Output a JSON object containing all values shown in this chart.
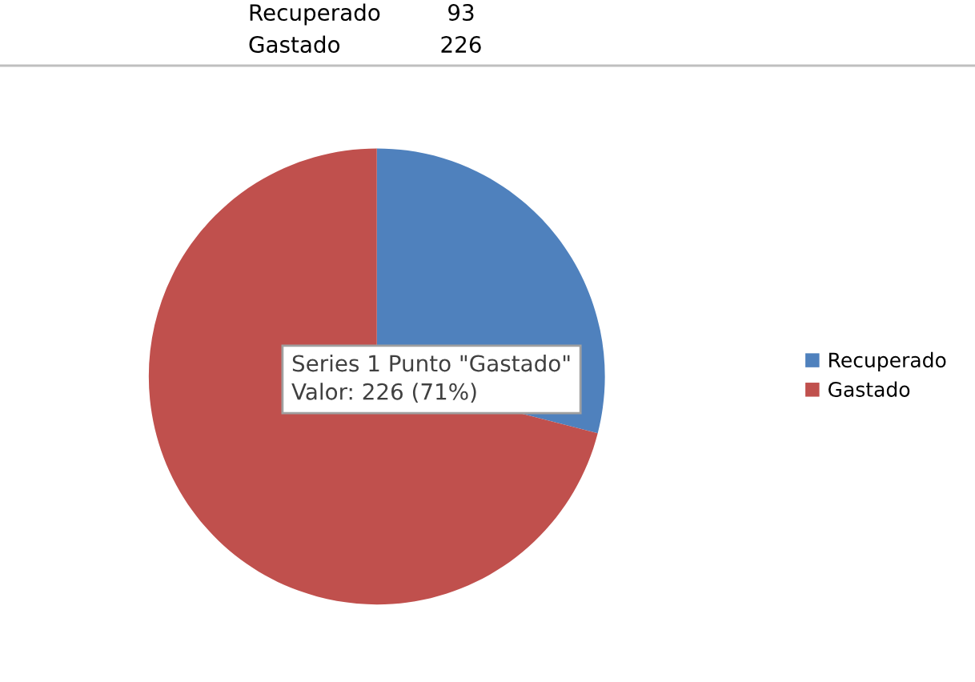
{
  "chart_data": {
    "type": "pie",
    "categories": [
      "Recuperado",
      "Gastado"
    ],
    "values": [
      29,
      71
    ],
    "colors": [
      "#4f81bd",
      "#c0504d"
    ],
    "legend": "right",
    "annotations": [
      "Recuperado",
      "93",
      "Gastado",
      "226",
      "Series 1 Punto \"Gastado\"\nValor: 226 (71%)"
    ]
  }
}
